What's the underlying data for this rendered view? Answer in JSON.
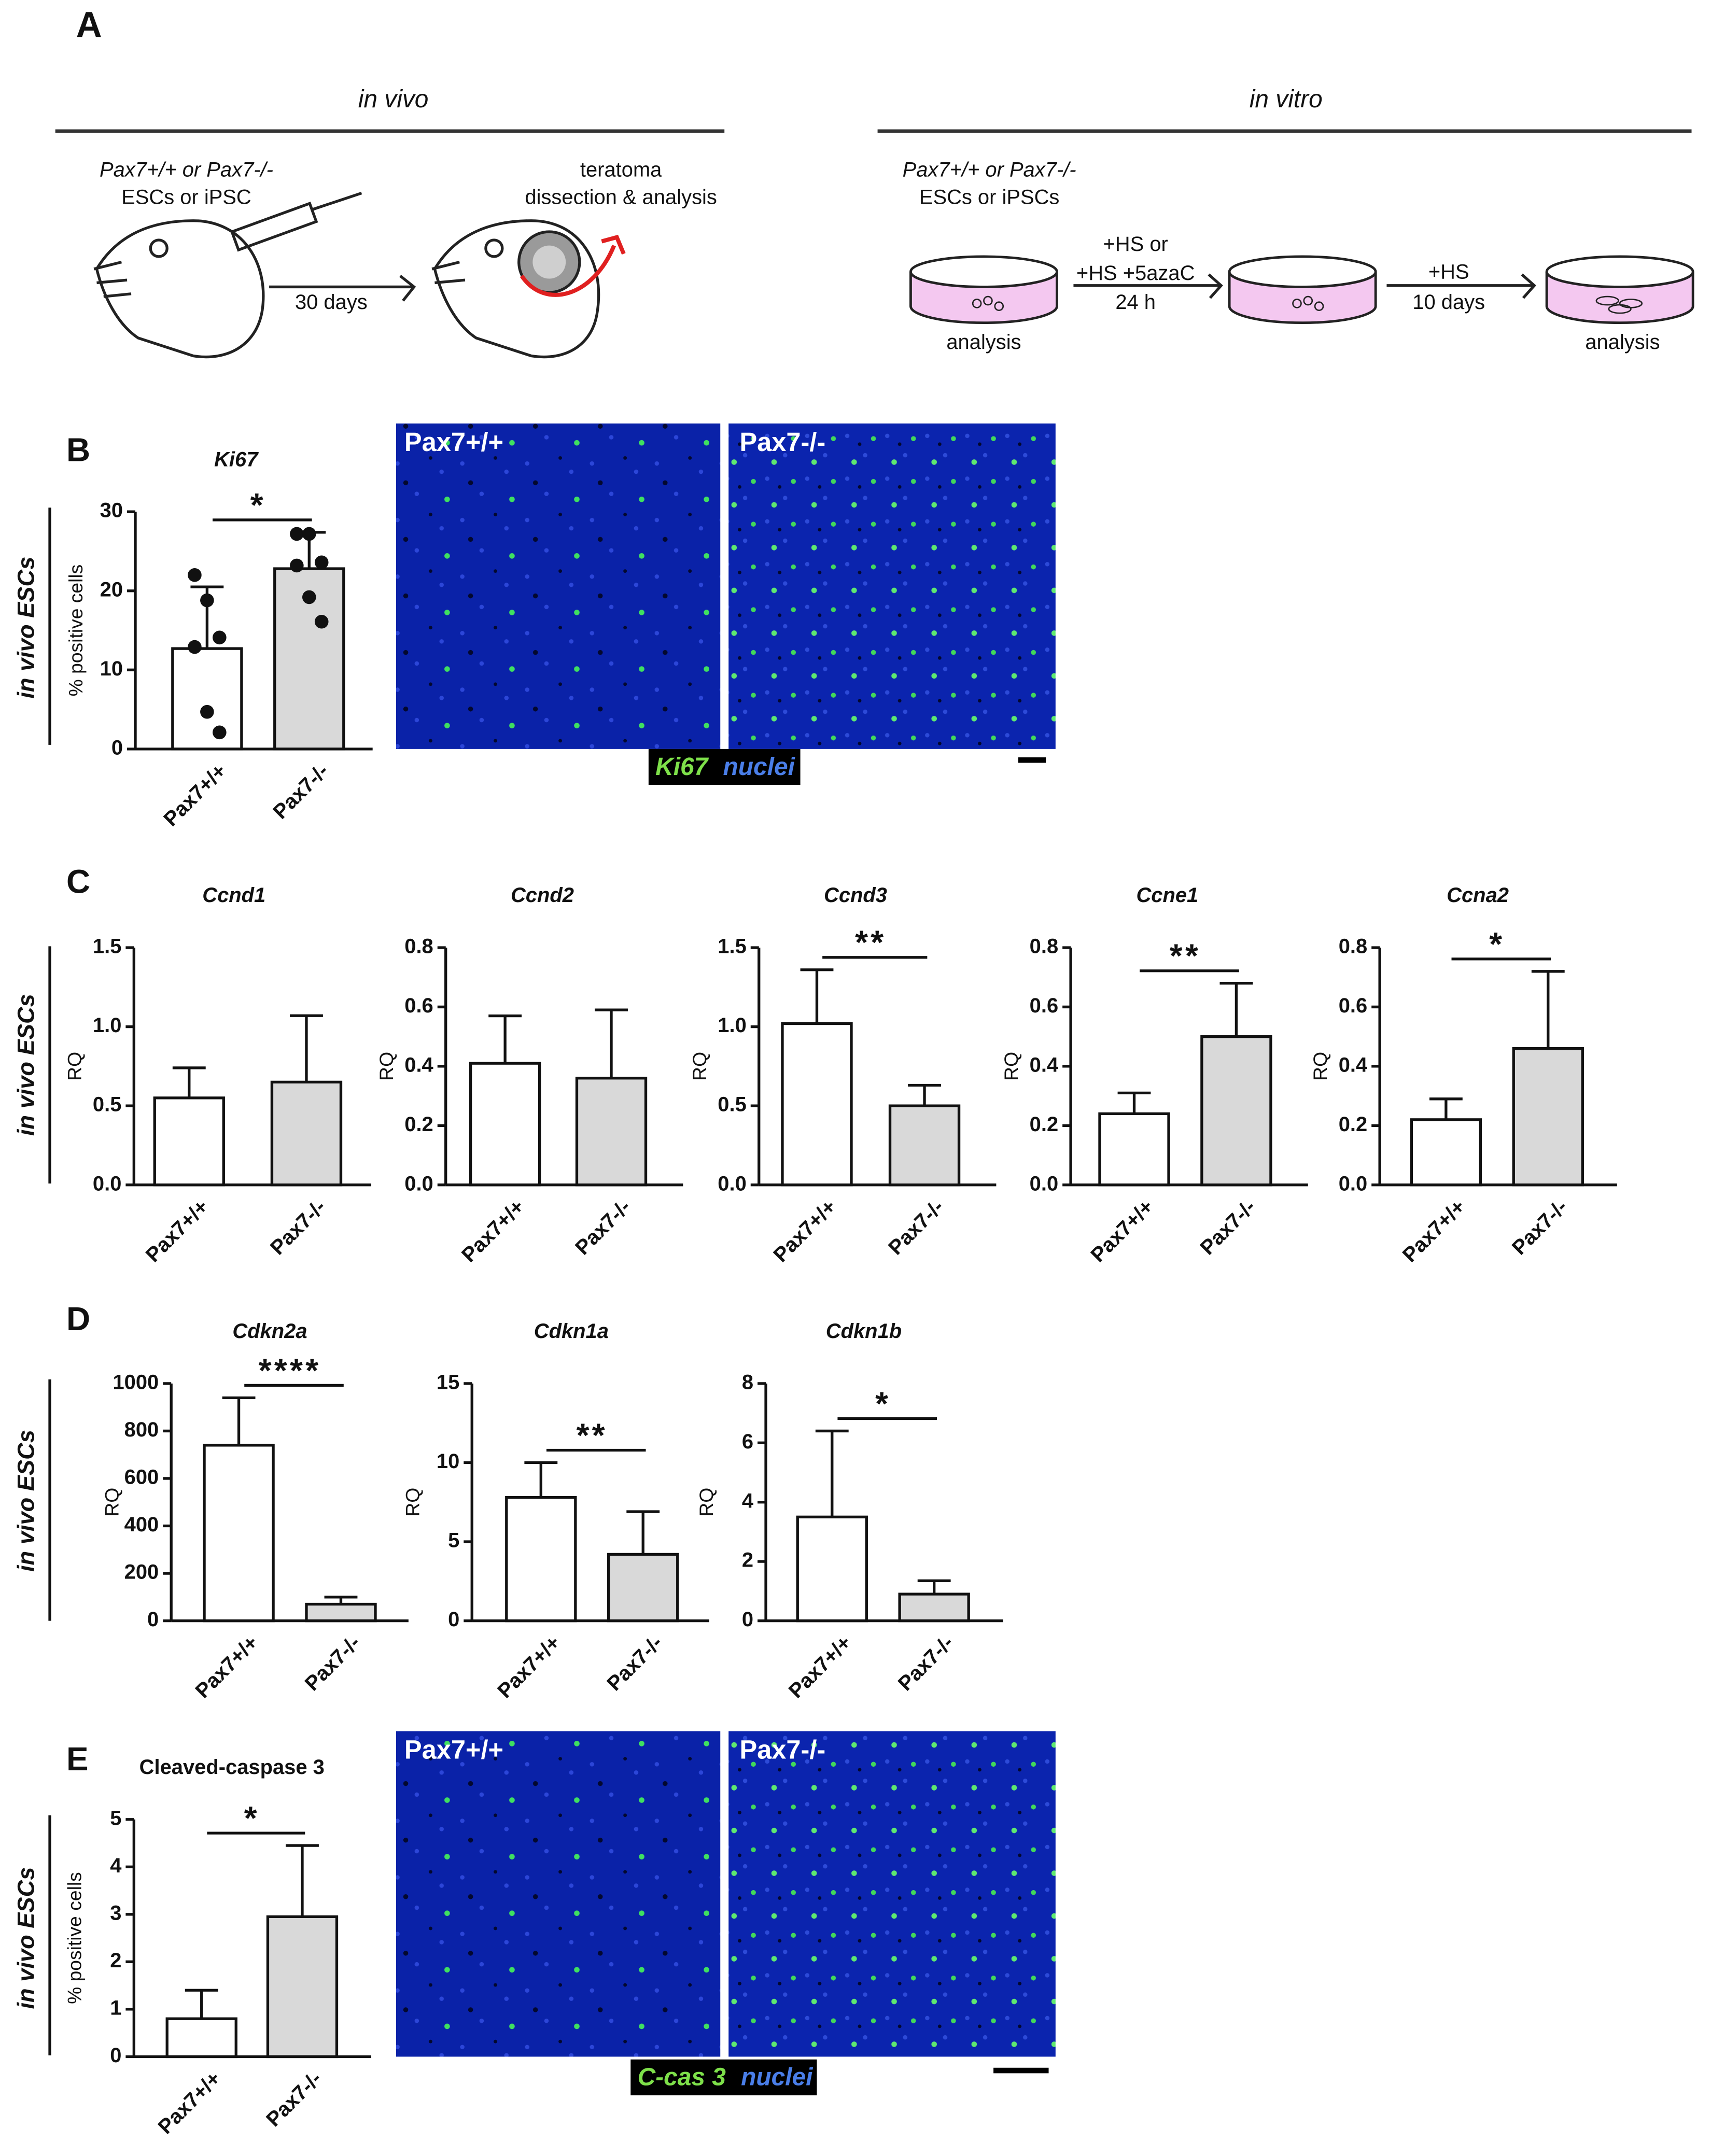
{
  "figure": {
    "panel_labels": [
      "A",
      "B",
      "C",
      "D",
      "E"
    ],
    "row_labels": [
      "in vivo ESCs",
      "in vivo ESCs",
      "in vivo ESCs",
      "in vivo ESCs"
    ],
    "schematic": {
      "in_vivo": {
        "heading": "in vivo",
        "genotype": "Pax7+/+ or Pax7-/-",
        "cells": "ESCs or iPSC",
        "interval": "30 days",
        "step": "teratoma",
        "step_detail": "dissection & analysis"
      },
      "in_vitro": {
        "heading": "in vitro",
        "genotype": "Pax7+/+ or Pax7-/-",
        "cells": "ESCs or iPSCs",
        "treatment": [
          "+HS or",
          "+HS +5azaC",
          "24 h"
        ],
        "culture": [
          "+HS",
          "10 days"
        ],
        "readouts": [
          "analysis",
          "analysis"
        ]
      }
    },
    "micrographs": [
      {
        "left": "Pax7+/+",
        "right": "Pax7-/-",
        "stain": "Ki67",
        "counterstain": "nuclei"
      },
      {
        "left": "Pax7+/+",
        "right": "Pax7-/-",
        "stain": "C-cas 3",
        "counterstain": "nuclei"
      }
    ]
  },
  "chart_data": [
    {
      "type": "bar",
      "title": "Ki67",
      "categories": [
        "Pax7+/+",
        "Pax7-/-"
      ],
      "values": [
        12.7,
        22.8
      ],
      "errors": [
        7.8,
        4.6
      ],
      "points": [
        [
          22.0,
          18.8,
          14.1,
          12.9,
          4.7,
          2.1
        ],
        [
          27.2,
          27.2,
          23.6,
          23.2,
          19.2,
          16.1
        ]
      ],
      "colors": [
        "#ffffff",
        "#d9d9d9"
      ],
      "ylabel": "% positive cells",
      "ylim": [
        0,
        30
      ],
      "yticks": [
        0,
        10,
        20,
        30
      ],
      "significance": "*"
    },
    {
      "type": "bar",
      "title": "Ccnd1",
      "categories": [
        "Pax7+/+",
        "Pax7-/-"
      ],
      "values": [
        0.55,
        0.65
      ],
      "errors": [
        0.19,
        0.42
      ],
      "colors": [
        "#ffffff",
        "#d9d9d9"
      ],
      "ylabel": "RQ",
      "ylim": [
        0,
        1.5
      ],
      "yticks": [
        {
          "value": 0,
          "label": "0.0"
        },
        0.5,
        {
          "value": 1,
          "label": "1.0"
        },
        1.5
      ]
    },
    {
      "type": "bar",
      "title": "Ccnd2",
      "categories": [
        "Pax7+/+",
        "Pax7-/-"
      ],
      "values": [
        0.41,
        0.36
      ],
      "errors": [
        0.16,
        0.23
      ],
      "colors": [
        "#ffffff",
        "#d9d9d9"
      ],
      "ylabel": "RQ",
      "ylim": [
        0,
        0.8
      ],
      "yticks": [
        {
          "value": 0,
          "label": "0.0"
        },
        0.2,
        0.4,
        0.6,
        0.8
      ]
    },
    {
      "type": "bar",
      "title": "Ccnd3",
      "categories": [
        "Pax7+/+",
        "Pax7-/-"
      ],
      "values": [
        1.02,
        0.5
      ],
      "errors": [
        0.34,
        0.13
      ],
      "colors": [
        "#ffffff",
        "#d9d9d9"
      ],
      "ylabel": "RQ",
      "ylim": [
        0,
        1.5
      ],
      "yticks": [
        {
          "value": 0,
          "label": "0.0"
        },
        0.5,
        {
          "value": 1,
          "label": "1.0"
        },
        1.5
      ],
      "significance": "**"
    },
    {
      "type": "bar",
      "title": "Ccne1",
      "categories": [
        "Pax7+/+",
        "Pax7-/-"
      ],
      "values": [
        0.24,
        0.5
      ],
      "errors": [
        0.07,
        0.18
      ],
      "colors": [
        "#ffffff",
        "#d9d9d9"
      ],
      "ylabel": "RQ",
      "ylim": [
        0,
        0.8
      ],
      "yticks": [
        {
          "value": 0,
          "label": "0.0"
        },
        0.2,
        0.4,
        0.6,
        0.8
      ],
      "significance": "**"
    },
    {
      "type": "bar",
      "title": "Ccna2",
      "categories": [
        "Pax7+/+",
        "Pax7-/-"
      ],
      "values": [
        0.22,
        0.46
      ],
      "errors": [
        0.07,
        0.26
      ],
      "colors": [
        "#ffffff",
        "#d9d9d9"
      ],
      "ylabel": "RQ",
      "ylim": [
        0,
        0.8
      ],
      "yticks": [
        {
          "value": 0,
          "label": "0.0"
        },
        0.2,
        0.4,
        0.6,
        0.8
      ],
      "significance": "*"
    },
    {
      "type": "bar",
      "title": "Cdkn2a",
      "categories": [
        "Pax7+/+",
        "Pax7-/-"
      ],
      "values": [
        740,
        70
      ],
      "errors": [
        200,
        30
      ],
      "colors": [
        "#ffffff",
        "#d9d9d9"
      ],
      "ylabel": "RQ",
      "ylim": [
        0,
        1000
      ],
      "yticks": [
        0,
        200,
        400,
        600,
        800,
        1000
      ],
      "significance": "****"
    },
    {
      "type": "bar",
      "title": "Cdkn1a",
      "categories": [
        "Pax7+/+",
        "Pax7-/-"
      ],
      "values": [
        7.8,
        4.2
      ],
      "errors": [
        2.2,
        2.7
      ],
      "colors": [
        "#ffffff",
        "#d9d9d9"
      ],
      "ylabel": "RQ",
      "ylim": [
        0,
        15
      ],
      "yticks": [
        0,
        5,
        10,
        15
      ],
      "significance": "**"
    },
    {
      "type": "bar",
      "title": "Cdkn1b",
      "categories": [
        "Pax7+/+",
        "Pax7-/-"
      ],
      "values": [
        3.5,
        0.9
      ],
      "errors": [
        2.9,
        0.45
      ],
      "colors": [
        "#ffffff",
        "#d9d9d9"
      ],
      "ylabel": "RQ",
      "ylim": [
        0,
        8
      ],
      "yticks": [
        0,
        2,
        4,
        6,
        8
      ],
      "significance": "*"
    },
    {
      "type": "bar",
      "title": "Cleaved-caspase 3",
      "categories": [
        "Pax7+/+",
        "Pax7-/-"
      ],
      "values": [
        0.8,
        2.95
      ],
      "errors": [
        0.6,
        1.5
      ],
      "colors": [
        "#ffffff",
        "#d9d9d9"
      ],
      "ylabel": "% positive cells",
      "ylim": [
        0,
        5
      ],
      "yticks": [
        0,
        1,
        2,
        3,
        4,
        5
      ],
      "significance": "*"
    }
  ]
}
